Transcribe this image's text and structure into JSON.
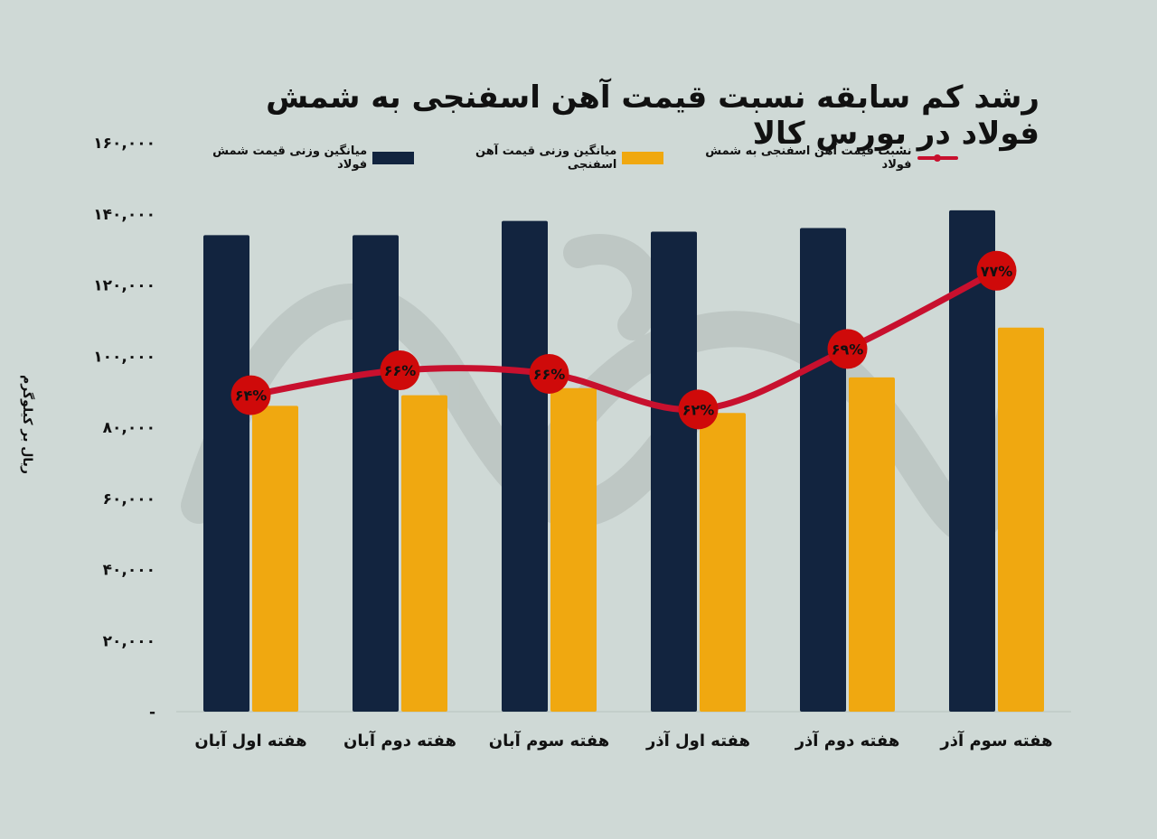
{
  "chart_data": {
    "type": "bar",
    "title": "رشد کم سابقه نسبت قیمت آهن اسفنجی به شمش فولاد در بورس کالا",
    "ylabel": "ریال بر کیلوگرم",
    "xlabel": "",
    "ylim": [
      0,
      160000
    ],
    "yticks": [
      "-",
      "۲۰,۰۰۰",
      "۴۰,۰۰۰",
      "۶۰,۰۰۰",
      "۸۰,۰۰۰",
      "۱۰۰,۰۰۰",
      "۱۲۰,۰۰۰",
      "۱۴۰,۰۰۰",
      "۱۶۰,۰۰۰"
    ],
    "ytick_values": [
      0,
      20000,
      40000,
      60000,
      80000,
      100000,
      120000,
      140000,
      160000
    ],
    "categories": [
      "هفته اول آبان",
      "هفته دوم آبان",
      "هفته سوم آبان",
      "هفته اول آذر",
      "هفته دوم آذر",
      "هفته سوم آذر"
    ],
    "series": [
      {
        "name": "میانگین وزنی قیمت شمش فولاد",
        "kind": "bar",
        "color": "#12243f",
        "values": [
          134000,
          134000,
          138000,
          135000,
          136000,
          141000
        ]
      },
      {
        "name": "میانگین وزنی قیمت آهن اسفنجی",
        "kind": "bar",
        "color": "#f0a810",
        "values": [
          86000,
          89000,
          91000,
          84000,
          94000,
          108000
        ]
      },
      {
        "name": "نسبت قیمت آهن اسفنجی به شمش فولاد",
        "kind": "line",
        "color": "#c8102e",
        "values": [
          64,
          66,
          66,
          62,
          69,
          77
        ],
        "labels": [
          "۶۴%",
          "۶۶%",
          "۶۶%",
          "۶۲%",
          "۶۹%",
          "۷۷%"
        ],
        "line_y_values": [
          89000,
          96000,
          95000,
          85000,
          102000,
          124000
        ]
      }
    ],
    "grid": false,
    "legend_position": "top"
  }
}
